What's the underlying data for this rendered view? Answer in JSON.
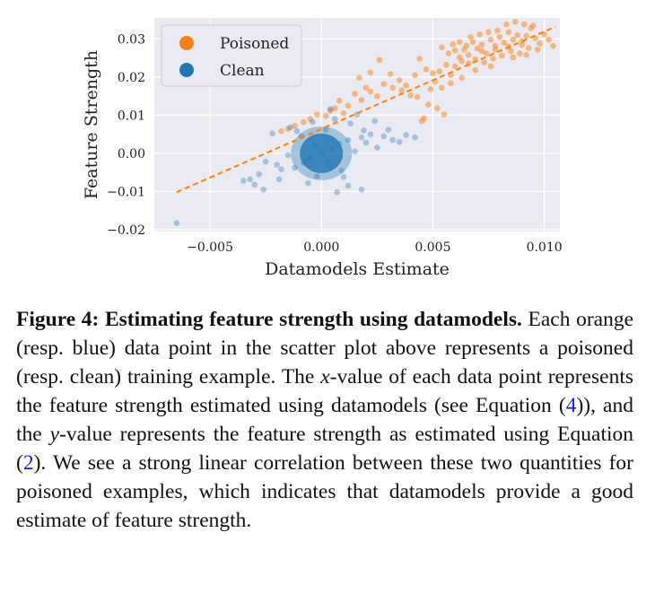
{
  "chart_data": {
    "type": "scatter",
    "xlabel": "Datamodels Estimate",
    "ylabel": "Feature Strength",
    "xlim": [
      -0.0075,
      0.0107
    ],
    "ylim": [
      -0.0205,
      0.0355
    ],
    "xticks": [
      -0.005,
      0.0,
      0.005,
      0.01
    ],
    "xtick_labels": [
      "−0.005",
      "0.000",
      "0.005",
      "0.010"
    ],
    "yticks": [
      -0.02,
      -0.01,
      0.0,
      0.01,
      0.02,
      0.03
    ],
    "ytick_labels": [
      "−0.02",
      "−0.01",
      "0.00",
      "0.01",
      "0.02",
      "0.03"
    ],
    "grid": true,
    "legend_position": "top-left",
    "series": [
      {
        "name": "Poisoned",
        "color": "#ff7f0e",
        "points": [
          [
            0.0045,
            0.0085
          ],
          [
            0.0048,
            0.0128
          ],
          [
            0.0052,
            0.0118
          ],
          [
            0.0055,
            0.0102
          ],
          [
            0.0046,
            0.0092
          ],
          [
            0.0043,
            0.0148
          ],
          [
            0.004,
            0.0152
          ],
          [
            0.0036,
            0.0165
          ],
          [
            0.0032,
            0.0172
          ],
          [
            0.0028,
            0.0182
          ],
          [
            0.0025,
            0.015
          ],
          [
            0.0022,
            0.0162
          ],
          [
            0.0018,
            0.014
          ],
          [
            0.0015,
            0.0156
          ],
          [
            0.0012,
            0.0125
          ],
          [
            0.001,
            0.0105
          ],
          [
            0.0008,
            0.0138
          ],
          [
            0.0006,
            0.0118
          ],
          [
            0.0004,
            0.0112
          ],
          [
            0.0002,
            0.0098
          ],
          [
            -0.0002,
            0.0102
          ],
          [
            -0.0005,
            0.009
          ],
          [
            -0.0008,
            0.0082
          ],
          [
            -0.0012,
            0.0072
          ],
          [
            -0.0015,
            0.0064
          ],
          [
            -0.0018,
            0.0058
          ],
          [
            0.0026,
            0.0245
          ],
          [
            0.0022,
            0.0212
          ],
          [
            0.0017,
            0.0198
          ],
          [
            0.002,
            0.0172
          ],
          [
            0.0031,
            0.0208
          ],
          [
            0.0035,
            0.0192
          ],
          [
            0.0038,
            0.0178
          ],
          [
            0.0042,
            0.0205
          ],
          [
            0.0044,
            0.0248
          ],
          [
            0.0047,
            0.022
          ],
          [
            0.005,
            0.021
          ],
          [
            0.0053,
            0.0215
          ],
          [
            0.0056,
            0.0232
          ],
          [
            0.0058,
            0.0205
          ],
          [
            0.006,
            0.0228
          ],
          [
            0.0062,
            0.0252
          ],
          [
            0.0064,
            0.0272
          ],
          [
            0.0066,
            0.0258
          ],
          [
            0.0068,
            0.0292
          ],
          [
            0.007,
            0.0275
          ],
          [
            0.0072,
            0.0285
          ],
          [
            0.0074,
            0.0262
          ],
          [
            0.0076,
            0.0298
          ],
          [
            0.0078,
            0.0282
          ],
          [
            0.008,
            0.0305
          ],
          [
            0.0082,
            0.029
          ],
          [
            0.0084,
            0.0318
          ],
          [
            0.0086,
            0.0298
          ],
          [
            0.0088,
            0.031
          ],
          [
            0.009,
            0.0295
          ],
          [
            0.0092,
            0.0308
          ],
          [
            0.0094,
            0.0328
          ],
          [
            0.0096,
            0.0302
          ],
          [
            0.0098,
            0.0288
          ],
          [
            0.01,
            0.0312
          ],
          [
            0.0102,
            0.0298
          ],
          [
            0.0104,
            0.0282
          ],
          [
            0.0054,
            0.0278
          ],
          [
            0.0057,
            0.0262
          ],
          [
            0.006,
            0.027
          ],
          [
            0.0063,
            0.0242
          ],
          [
            0.0066,
            0.0236
          ],
          [
            0.0069,
            0.0246
          ],
          [
            0.0073,
            0.0238
          ],
          [
            0.0077,
            0.0248
          ],
          [
            0.0081,
            0.0256
          ],
          [
            0.0085,
            0.0268
          ],
          [
            0.0089,
            0.0262
          ],
          [
            0.0093,
            0.0276
          ],
          [
            0.0097,
            0.0272
          ],
          [
            0.0071,
            0.0312
          ],
          [
            0.0075,
            0.0318
          ],
          [
            0.0079,
            0.0322
          ],
          [
            0.0083,
            0.0338
          ],
          [
            0.0087,
            0.0345
          ],
          [
            0.0091,
            0.0338
          ],
          [
            0.0095,
            0.0335
          ],
          [
            0.0067,
            0.0305
          ],
          [
            0.0062,
            0.0292
          ],
          [
            0.0059,
            0.0286
          ],
          [
            0.0065,
            0.0282
          ],
          [
            0.0072,
            0.0268
          ],
          [
            0.0078,
            0.0272
          ],
          [
            0.0084,
            0.028
          ],
          [
            0.009,
            0.0284
          ],
          [
            0.0086,
            0.0252
          ],
          [
            0.0092,
            0.0258
          ],
          [
            0.0076,
            0.0228
          ],
          [
            0.0069,
            0.0218
          ],
          [
            0.0051,
            0.0188
          ],
          [
            0.0049,
            0.0168
          ],
          [
            0.0054,
            0.0172
          ],
          [
            0.0058,
            0.0184
          ],
          [
            0.0063,
            0.0198
          ]
        ]
      },
      {
        "name": "Clean",
        "color": "#1f77b4",
        "points": [
          [
            0.0,
            0.0
          ],
          [
            0.0005,
            0.0012
          ],
          [
            -0.0005,
            -0.0012
          ],
          [
            0.0008,
            0.0025
          ],
          [
            -0.0008,
            -0.0025
          ],
          [
            0.0012,
            0.0035
          ],
          [
            -0.0012,
            -0.0038
          ],
          [
            0.0003,
            -0.0022
          ],
          [
            -0.0003,
            0.0022
          ],
          [
            0.0015,
            0.0005
          ],
          [
            -0.0015,
            -0.0005
          ],
          [
            0.0002,
            0.0062
          ],
          [
            -0.0002,
            -0.006
          ],
          [
            0.0009,
            -0.0045
          ],
          [
            -0.0009,
            0.0045
          ],
          [
            0.0018,
            0.0042
          ],
          [
            -0.0018,
            -0.0042
          ],
          [
            0.0006,
            0.009
          ],
          [
            0.0013,
            0.0078
          ],
          [
            -0.0004,
            0.0082
          ],
          [
            0.002,
            0.0028
          ],
          [
            -0.002,
            -0.003
          ],
          [
            0.0025,
            0.0015
          ],
          [
            -0.0025,
            -0.0022
          ],
          [
            0.0022,
            0.005
          ],
          [
            0.0028,
            0.0045
          ],
          [
            0.0032,
            0.0035
          ],
          [
            0.0035,
            0.003
          ],
          [
            0.0038,
            0.0048
          ],
          [
            -0.0028,
            -0.0055
          ],
          [
            -0.0032,
            -0.0068
          ],
          [
            -0.0035,
            -0.0072
          ],
          [
            -0.003,
            -0.0082
          ],
          [
            -0.0026,
            -0.0095
          ],
          [
            0.0012,
            -0.0085
          ],
          [
            0.0018,
            -0.0095
          ],
          [
            -0.0022,
            0.0052
          ],
          [
            -0.0014,
            0.0068
          ],
          [
            -0.0065,
            -0.0183
          ],
          [
            0.0004,
            0.0116
          ],
          [
            0.0016,
            0.0102
          ],
          [
            0.0024,
            0.0085
          ],
          [
            0.003,
            0.0062
          ],
          [
            0.0042,
            0.0042
          ],
          [
            0.001,
            -0.0062
          ],
          [
            -0.0006,
            -0.0078
          ],
          [
            0.0007,
            -0.0102
          ],
          [
            -0.0011,
            0.0058
          ],
          [
            0.0019,
            0.006
          ],
          [
            -0.0019,
            -0.0068
          ]
        ]
      }
    ],
    "trendline": {
      "style": "dashed",
      "color": "#ff7f0e",
      "from": [
        -0.0065,
        -0.0102
      ],
      "to": [
        0.0105,
        0.0332
      ]
    }
  },
  "caption": {
    "lead": "Figure 4: Estimating feature strength using datamodels.",
    "text_1": " Each orange (resp. blue) data point in the scatter plot above represents a poisoned (resp. clean) training example. The ",
    "var_x": "x",
    "text_2": "-value of each data point represents the feature strength estimated using datamodels (see Equation (",
    "ref_eq4": "4",
    "text_3": ")), and the ",
    "var_y": "y",
    "text_4": "-value represents the feature strength as estimated using Equation (",
    "ref_eq2": "2",
    "text_5": "). We see a strong linear correlation between these two quantities for poisoned examples, which indicates that datamodels provide a good estimate of feature strength."
  }
}
